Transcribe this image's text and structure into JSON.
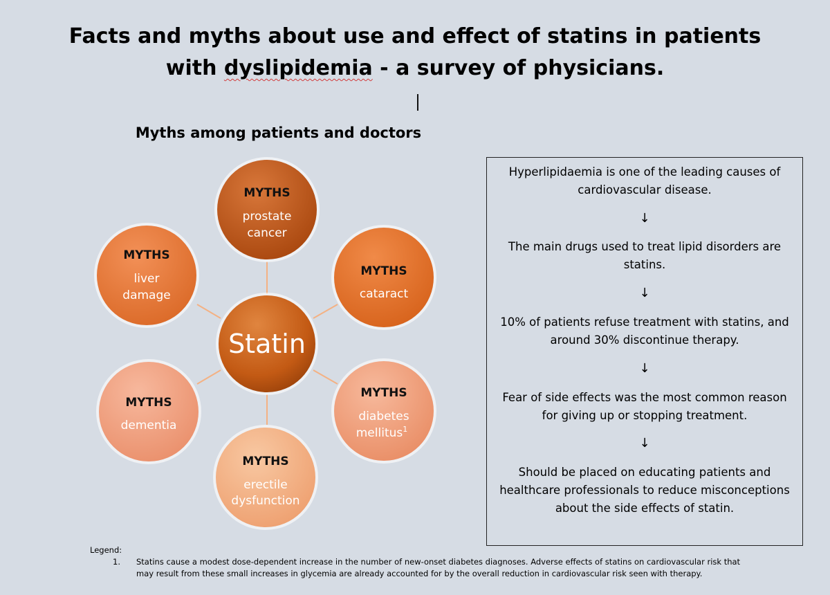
{
  "title": {
    "line1": "Facts and myths about use and effect of statins in patients",
    "line2_pre": "with ",
    "line2_underlined": "dyslipidemia",
    "line2_post": " - a survey of physicians."
  },
  "diagram": {
    "heading": "Myths among patients and doctors",
    "center": "Statin",
    "myths_label": "MYTHS",
    "bubbles": [
      {
        "line1": "prostate",
        "line2": "cancer",
        "color": "#c55a11"
      },
      {
        "line1": "cataract",
        "line2": "",
        "color": "#e2732a"
      },
      {
        "line1": "diabetes",
        "line2": "mellitus",
        "superscript": "1",
        "color": "#f0a482"
      },
      {
        "line1": "erectile",
        "line2": "dysfunction",
        "color": "#f2b388"
      },
      {
        "line1": "dementia",
        "line2": "",
        "color": "#f0a486"
      },
      {
        "line1": "liver",
        "line2": "damage",
        "color": "#e8793c"
      }
    ],
    "connector_color": "#f4b183"
  },
  "info_box": {
    "steps": [
      "Hyperlipidaemia is one of the leading causes of cardiovascular disease.",
      "The main drugs used to treat lipid disorders are statins.",
      "10% of patients refuse treatment with statins, and around 30% discontinue therapy.",
      "Fear of side effects was the most common reason for giving up or stopping treatment.",
      "Should be placed on educating patients and healthcare professionals to reduce misconceptions about the side effects of statin."
    ],
    "arrow": "↓"
  },
  "legend": {
    "heading": "Legend:",
    "items": [
      {
        "number": "1.",
        "text": "Statins cause a modest dose-dependent increase in the number of new-onset diabetes diagnoses. Adverse effects of statins on cardiovascular risk that may result from these small increases in glycemia are already accounted for by the overall reduction in cardiovascular risk seen with therapy."
      }
    ]
  }
}
